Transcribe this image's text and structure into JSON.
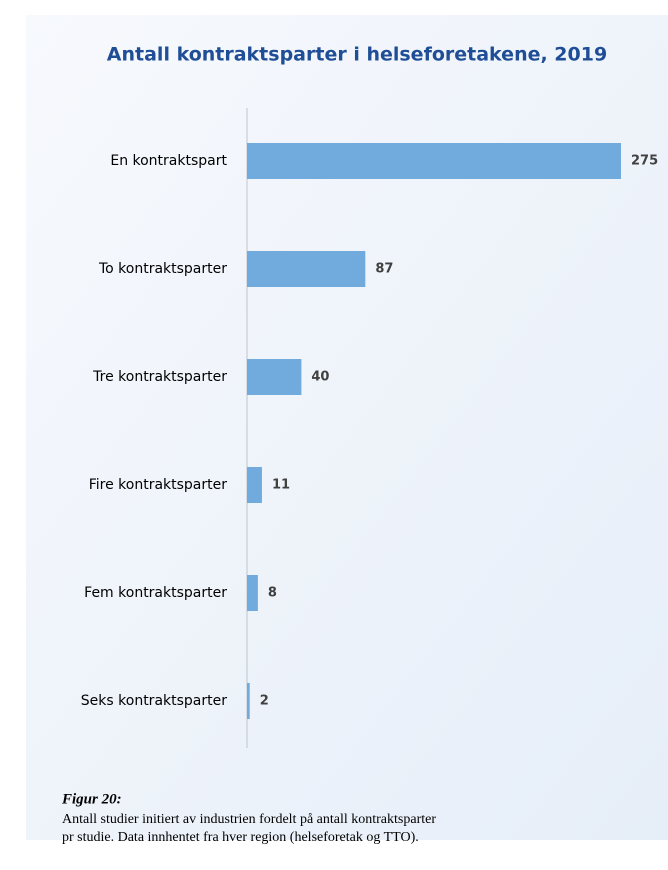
{
  "chart_data": {
    "type": "hbar",
    "title": "Antall kontraktsparter i helseforetakene, 2019",
    "categories": [
      "En kontraktspart",
      "To kontraktsparter",
      "Tre kontraktsparter",
      "Fire kontraktsparter",
      "Fem kontraktsparter",
      "Seks kontraktsparter"
    ],
    "values": [
      275,
      87,
      40,
      11,
      8,
      2
    ],
    "color": "#71abdd"
  },
  "caption": {
    "label": "Figur 20:",
    "lines": [
      "Antall studier initiert av industrien fordelt på antall kontraktsparter",
      "pr studie. Data innhentet fra hver region (helseforetak og TTO)."
    ]
  }
}
